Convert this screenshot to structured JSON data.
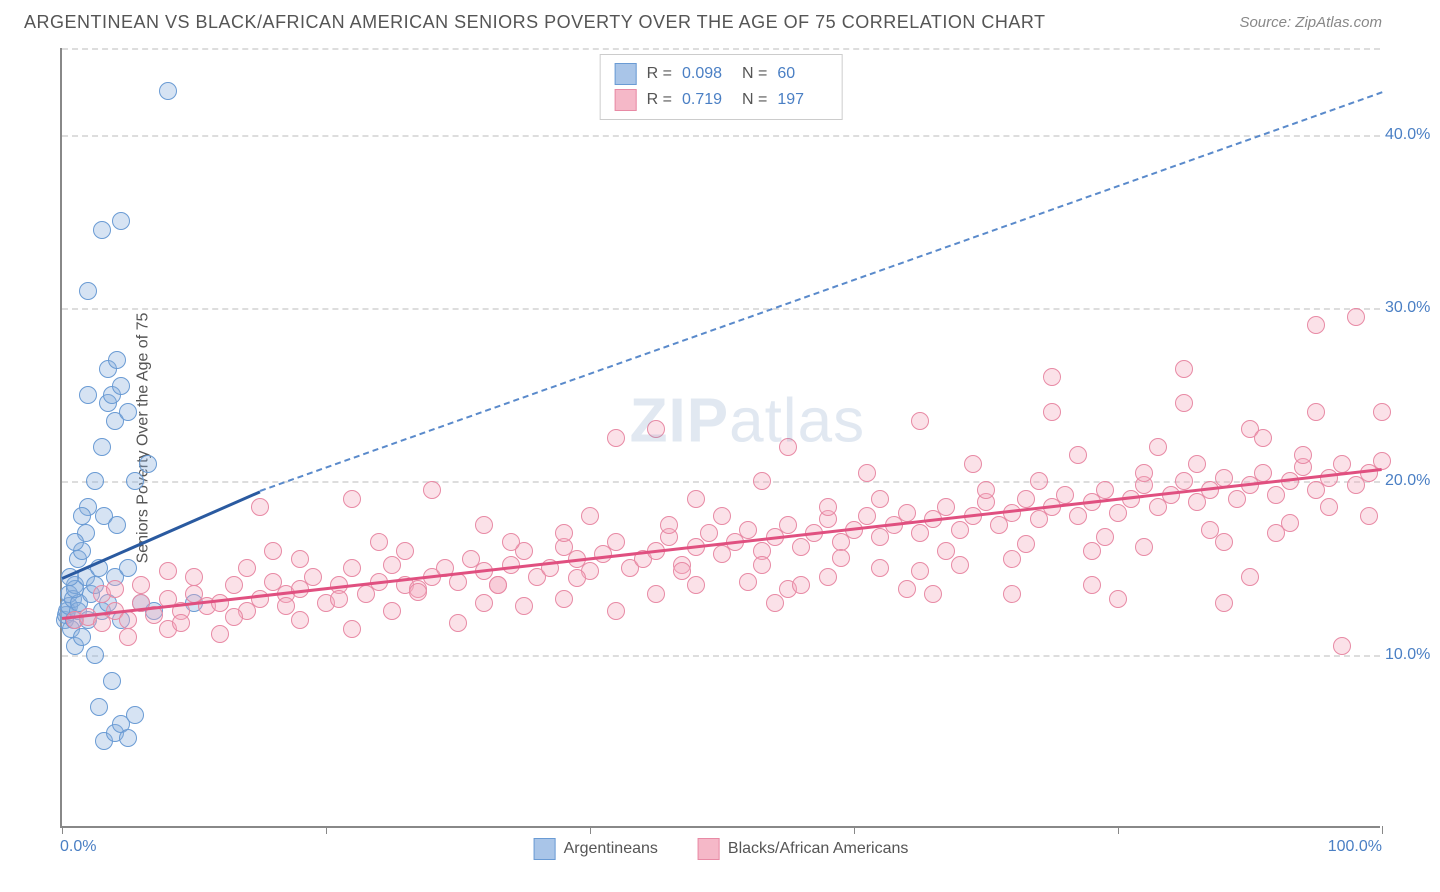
{
  "title": "ARGENTINEAN VS BLACK/AFRICAN AMERICAN SENIORS POVERTY OVER THE AGE OF 75 CORRELATION CHART",
  "source": "Source: ZipAtlas.com",
  "y_axis_label": "Seniors Poverty Over the Age of 75",
  "watermark_bold": "ZIP",
  "watermark_thin": "atlas",
  "chart": {
    "type": "scatter",
    "xlim": [
      0,
      100
    ],
    "ylim": [
      0,
      45
    ],
    "x_ticks": [
      0,
      20,
      40,
      60,
      80,
      100
    ],
    "x_tick_labels": {
      "0": "0.0%",
      "100": "100.0%"
    },
    "y_ticks": [
      10,
      20,
      30,
      40
    ],
    "y_tick_labels": {
      "10": "10.0%",
      "20": "20.0%",
      "30": "30.0%",
      "40": "40.0%"
    },
    "background_color": "#ffffff",
    "grid_color": "#dddddd",
    "axis_color": "#888888",
    "tick_label_color": "#4a7fc4",
    "marker_radius": 9,
    "marker_stroke_width": 1.5,
    "series": [
      {
        "name": "Argentineans",
        "fill": "rgba(137,175,222,0.35)",
        "stroke": "#6a9bd4",
        "swatch_fill": "#a9c5e8",
        "swatch_stroke": "#6a9bd4",
        "R": "0.098",
        "N": "60",
        "trend": {
          "solid": {
            "x1": 0,
            "y1": 14.5,
            "x2": 15,
            "y2": 19.5,
            "color": "#2a5aa0",
            "width": 2.5
          },
          "dashed": {
            "x1": 15,
            "y1": 19.5,
            "x2": 100,
            "y2": 42.5,
            "color": "#5a8acb",
            "width": 2
          }
        },
        "points": [
          [
            0.2,
            12.0
          ],
          [
            0.3,
            12.3
          ],
          [
            0.4,
            12.5
          ],
          [
            0.5,
            12.8
          ],
          [
            0.5,
            13.5
          ],
          [
            0.7,
            11.5
          ],
          [
            0.8,
            13.2
          ],
          [
            0.9,
            12.0
          ],
          [
            1.0,
            14.0
          ],
          [
            1.0,
            10.5
          ],
          [
            1.2,
            12.5
          ],
          [
            1.2,
            15.5
          ],
          [
            1.3,
            13.0
          ],
          [
            1.5,
            16.0
          ],
          [
            1.5,
            11.0
          ],
          [
            1.8,
            14.5
          ],
          [
            1.8,
            17.0
          ],
          [
            2.0,
            12.0
          ],
          [
            2.0,
            18.5
          ],
          [
            2.2,
            13.5
          ],
          [
            2.5,
            14.0
          ],
          [
            2.5,
            20.0
          ],
          [
            2.8,
            15.0
          ],
          [
            3.0,
            12.5
          ],
          [
            3.0,
            22.0
          ],
          [
            3.2,
            18.0
          ],
          [
            3.5,
            13.0
          ],
          [
            3.5,
            24.5
          ],
          [
            3.8,
            25.0
          ],
          [
            4.0,
            14.5
          ],
          [
            4.0,
            23.5
          ],
          [
            4.2,
            17.5
          ],
          [
            4.5,
            12.0
          ],
          [
            4.5,
            25.5
          ],
          [
            5.0,
            15.0
          ],
          [
            5.0,
            24.0
          ],
          [
            5.5,
            20.0
          ],
          [
            6.0,
            13.0
          ],
          [
            6.5,
            21.0
          ],
          [
            7.0,
            12.5
          ],
          [
            8.0,
            42.5
          ],
          [
            2.0,
            31.0
          ],
          [
            3.0,
            34.5
          ],
          [
            4.5,
            35.0
          ],
          [
            1.0,
            16.5
          ],
          [
            1.5,
            18.0
          ],
          [
            2.8,
            7.0
          ],
          [
            3.2,
            5.0
          ],
          [
            4.0,
            5.5
          ],
          [
            4.5,
            6.0
          ],
          [
            5.0,
            5.2
          ],
          [
            5.5,
            6.5
          ],
          [
            3.8,
            8.5
          ],
          [
            2.5,
            10.0
          ],
          [
            1.0,
            13.8
          ],
          [
            0.6,
            14.5
          ],
          [
            10.0,
            13.0
          ],
          [
            2.0,
            25.0
          ],
          [
            3.5,
            26.5
          ],
          [
            4.2,
            27.0
          ]
        ]
      },
      {
        "name": "Blacks/African Americans",
        "fill": "rgba(244,170,190,0.35)",
        "stroke": "#e88aa5",
        "swatch_fill": "#f5b8c8",
        "swatch_stroke": "#e88aa5",
        "R": "0.719",
        "N": "197",
        "trend": {
          "solid": {
            "x1": 0,
            "y1": 12.2,
            "x2": 100,
            "y2": 20.8,
            "color": "#e05080",
            "width": 2.5
          }
        },
        "points": [
          [
            1,
            12.0
          ],
          [
            2,
            12.2
          ],
          [
            3,
            11.8
          ],
          [
            4,
            12.5
          ],
          [
            5,
            12.0
          ],
          [
            6,
            13.0
          ],
          [
            7,
            12.3
          ],
          [
            8,
            13.2
          ],
          [
            9,
            12.5
          ],
          [
            10,
            13.5
          ],
          [
            11,
            12.8
          ],
          [
            12,
            13.0
          ],
          [
            13,
            14.0
          ],
          [
            14,
            12.5
          ],
          [
            15,
            13.2
          ],
          [
            16,
            14.2
          ],
          [
            17,
            13.5
          ],
          [
            18,
            13.8
          ],
          [
            19,
            14.5
          ],
          [
            20,
            13.0
          ],
          [
            21,
            14.0
          ],
          [
            22,
            15.0
          ],
          [
            23,
            13.5
          ],
          [
            24,
            14.2
          ],
          [
            25,
            15.2
          ],
          [
            26,
            14.0
          ],
          [
            27,
            13.8
          ],
          [
            28,
            14.5
          ],
          [
            29,
            15.0
          ],
          [
            30,
            14.2
          ],
          [
            31,
            15.5
          ],
          [
            32,
            14.8
          ],
          [
            33,
            14.0
          ],
          [
            34,
            15.2
          ],
          [
            35,
            16.0
          ],
          [
            36,
            14.5
          ],
          [
            37,
            15.0
          ],
          [
            38,
            16.2
          ],
          [
            39,
            15.5
          ],
          [
            40,
            14.8
          ],
          [
            41,
            15.8
          ],
          [
            42,
            16.5
          ],
          [
            43,
            15.0
          ],
          [
            44,
            15.5
          ],
          [
            45,
            16.0
          ],
          [
            46,
            16.8
          ],
          [
            47,
            15.2
          ],
          [
            48,
            16.2
          ],
          [
            49,
            17.0
          ],
          [
            50,
            15.8
          ],
          [
            51,
            16.5
          ],
          [
            52,
            17.2
          ],
          [
            53,
            16.0
          ],
          [
            54,
            16.8
          ],
          [
            55,
            17.5
          ],
          [
            56,
            16.2
          ],
          [
            57,
            17.0
          ],
          [
            58,
            17.8
          ],
          [
            59,
            16.5
          ],
          [
            60,
            17.2
          ],
          [
            61,
            18.0
          ],
          [
            62,
            16.8
          ],
          [
            63,
            17.5
          ],
          [
            64,
            18.2
          ],
          [
            65,
            17.0
          ],
          [
            66,
            17.8
          ],
          [
            67,
            18.5
          ],
          [
            68,
            17.2
          ],
          [
            69,
            18.0
          ],
          [
            70,
            18.8
          ],
          [
            71,
            17.5
          ],
          [
            72,
            18.2
          ],
          [
            73,
            19.0
          ],
          [
            74,
            17.8
          ],
          [
            75,
            18.5
          ],
          [
            76,
            19.2
          ],
          [
            77,
            18.0
          ],
          [
            78,
            18.8
          ],
          [
            79,
            19.5
          ],
          [
            80,
            18.2
          ],
          [
            81,
            19.0
          ],
          [
            82,
            19.8
          ],
          [
            83,
            18.5
          ],
          [
            84,
            19.2
          ],
          [
            85,
            20.0
          ],
          [
            86,
            18.8
          ],
          [
            87,
            19.5
          ],
          [
            88,
            20.2
          ],
          [
            89,
            19.0
          ],
          [
            90,
            19.8
          ],
          [
            91,
            20.5
          ],
          [
            92,
            19.2
          ],
          [
            93,
            20.0
          ],
          [
            94,
            20.8
          ],
          [
            95,
            19.5
          ],
          [
            96,
            20.2
          ],
          [
            97,
            21.0
          ],
          [
            98,
            19.8
          ],
          [
            99,
            20.5
          ],
          [
            100,
            21.2
          ],
          [
            5,
            11.0
          ],
          [
            8,
            11.5
          ],
          [
            12,
            11.2
          ],
          [
            15,
            18.5
          ],
          [
            18,
            12.0
          ],
          [
            22,
            19.0
          ],
          [
            25,
            12.5
          ],
          [
            28,
            19.5
          ],
          [
            32,
            13.0
          ],
          [
            35,
            12.8
          ],
          [
            38,
            13.2
          ],
          [
            42,
            22.5
          ],
          [
            45,
            13.5
          ],
          [
            48,
            14.0
          ],
          [
            52,
            14.2
          ],
          [
            55,
            13.8
          ],
          [
            58,
            14.5
          ],
          [
            62,
            15.0
          ],
          [
            65,
            14.8
          ],
          [
            68,
            15.2
          ],
          [
            72,
            15.5
          ],
          [
            75,
            26.0
          ],
          [
            78,
            16.0
          ],
          [
            82,
            16.2
          ],
          [
            85,
            26.5
          ],
          [
            88,
            16.5
          ],
          [
            92,
            17.0
          ],
          [
            95,
            29.0
          ],
          [
            98,
            29.5
          ],
          [
            97,
            10.5
          ],
          [
            10,
            14.5
          ],
          [
            14,
            15.0
          ],
          [
            18,
            15.5
          ],
          [
            22,
            11.5
          ],
          [
            26,
            16.0
          ],
          [
            30,
            11.8
          ],
          [
            34,
            16.5
          ],
          [
            38,
            17.0
          ],
          [
            42,
            12.5
          ],
          [
            46,
            17.5
          ],
          [
            50,
            18.0
          ],
          [
            54,
            13.0
          ],
          [
            58,
            18.5
          ],
          [
            62,
            19.0
          ],
          [
            66,
            13.5
          ],
          [
            70,
            19.5
          ],
          [
            74,
            20.0
          ],
          [
            78,
            14.0
          ],
          [
            82,
            20.5
          ],
          [
            86,
            21.0
          ],
          [
            90,
            14.5
          ],
          [
            94,
            21.5
          ],
          [
            45,
            23.0
          ],
          [
            55,
            22.0
          ],
          [
            65,
            23.5
          ],
          [
            75,
            24.0
          ],
          [
            85,
            24.5
          ],
          [
            90,
            23.0
          ],
          [
            95,
            24.0
          ],
          [
            88,
            13.0
          ],
          [
            80,
            13.2
          ],
          [
            72,
            13.5
          ],
          [
            64,
            13.8
          ],
          [
            56,
            14.0
          ],
          [
            48,
            19.0
          ],
          [
            40,
            18.0
          ],
          [
            32,
            17.5
          ],
          [
            24,
            16.5
          ],
          [
            16,
            16.0
          ],
          [
            8,
            14.8
          ],
          [
            3,
            13.5
          ],
          [
            6,
            14.0
          ],
          [
            9,
            11.8
          ],
          [
            13,
            12.2
          ],
          [
            17,
            12.8
          ],
          [
            21,
            13.2
          ],
          [
            27,
            13.6
          ],
          [
            33,
            14.0
          ],
          [
            39,
            14.4
          ],
          [
            47,
            14.8
          ],
          [
            53,
            15.2
          ],
          [
            59,
            15.6
          ],
          [
            67,
            16.0
          ],
          [
            73,
            16.4
          ],
          [
            79,
            16.8
          ],
          [
            87,
            17.2
          ],
          [
            93,
            17.6
          ],
          [
            99,
            18.0
          ],
          [
            91,
            22.5
          ],
          [
            83,
            22.0
          ],
          [
            77,
            21.5
          ],
          [
            69,
            21.0
          ],
          [
            61,
            20.5
          ],
          [
            53,
            20.0
          ],
          [
            100,
            24.0
          ],
          [
            96,
            18.5
          ],
          [
            4,
            13.8
          ]
        ]
      }
    ]
  },
  "legend_top_labels": {
    "R": "R =",
    "N": "N ="
  },
  "legend_bottom": [
    {
      "label": "Argentineans",
      "series_idx": 0
    },
    {
      "label": "Blacks/African Americans",
      "series_idx": 1
    }
  ]
}
